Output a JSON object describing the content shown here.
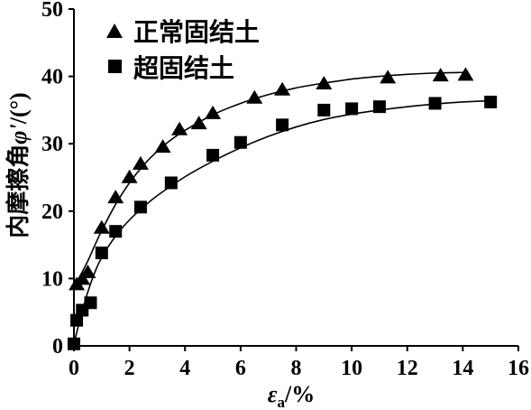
{
  "chart_data": {
    "type": "scatter",
    "xlim": [
      0,
      16
    ],
    "ylim": [
      0,
      50
    ],
    "xticks": [
      0,
      2,
      4,
      6,
      8,
      10,
      12,
      14,
      16
    ],
    "yticks": [
      0,
      10,
      20,
      30,
      40,
      50
    ],
    "grid": false,
    "legend": "top-left",
    "xlabel": {
      "var": "ε",
      "sub": "a",
      "unit": "/%"
    },
    "ylabel": {
      "text": "内摩擦角",
      "var": "φ'",
      "unit": "/(°)"
    },
    "series": [
      {
        "name": "正常固结土",
        "marker": "triangle",
        "color": "#000000",
        "points": [
          [
            0.1,
            9.2
          ],
          [
            0.3,
            10.0
          ],
          [
            0.5,
            11.0
          ],
          [
            1.0,
            17.6
          ],
          [
            1.5,
            22.1
          ],
          [
            2.0,
            25.1
          ],
          [
            2.4,
            27.1
          ],
          [
            3.2,
            29.6
          ],
          [
            3.8,
            32.2
          ],
          [
            4.5,
            33.1
          ],
          [
            5.0,
            34.6
          ],
          [
            6.5,
            36.9
          ],
          [
            7.5,
            38.1
          ],
          [
            9.0,
            39.0
          ],
          [
            11.3,
            39.9
          ],
          [
            13.2,
            40.2
          ],
          [
            14.1,
            40.3
          ]
        ],
        "fit": [
          [
            0,
            8.8
          ],
          [
            0.25,
            10.6
          ],
          [
            0.5,
            12.6
          ],
          [
            0.75,
            14.9
          ],
          [
            1.0,
            17.1
          ],
          [
            1.5,
            21.0
          ],
          [
            2.0,
            24.2
          ],
          [
            2.5,
            26.8
          ],
          [
            3.0,
            28.9
          ],
          [
            3.5,
            30.6
          ],
          [
            4.0,
            32.0
          ],
          [
            5.0,
            34.3
          ],
          [
            6.0,
            36.0
          ],
          [
            7.0,
            37.3
          ],
          [
            8.0,
            38.3
          ],
          [
            9.0,
            39.0
          ],
          [
            10.0,
            39.6
          ],
          [
            11.0,
            40.0
          ],
          [
            12.0,
            40.3
          ],
          [
            13.0,
            40.5
          ],
          [
            14.1,
            40.6
          ]
        ]
      },
      {
        "name": "超固结土",
        "marker": "square",
        "color": "#000000",
        "points": [
          [
            0.0,
            0.3
          ],
          [
            0.1,
            3.8
          ],
          [
            0.3,
            5.3
          ],
          [
            0.6,
            6.4
          ],
          [
            1.0,
            13.8
          ],
          [
            1.5,
            17.0
          ],
          [
            2.4,
            20.6
          ],
          [
            3.5,
            24.2
          ],
          [
            5.0,
            28.3
          ],
          [
            6.0,
            30.2
          ],
          [
            7.5,
            32.8
          ],
          [
            9.0,
            35.0
          ],
          [
            10.0,
            35.2
          ],
          [
            11.0,
            35.5
          ],
          [
            13.0,
            36.0
          ],
          [
            15.0,
            36.2
          ]
        ],
        "fit": [
          [
            0,
            0.3
          ],
          [
            0.15,
            2.8
          ],
          [
            0.3,
            5.2
          ],
          [
            0.5,
            8.0
          ],
          [
            0.75,
            10.9
          ],
          [
            1.0,
            13.1
          ],
          [
            1.5,
            16.3
          ],
          [
            2.0,
            18.7
          ],
          [
            2.5,
            20.6
          ],
          [
            3.0,
            22.3
          ],
          [
            4.0,
            25.1
          ],
          [
            5.0,
            27.4
          ],
          [
            6.0,
            29.4
          ],
          [
            7.0,
            31.1
          ],
          [
            8.0,
            32.5
          ],
          [
            9.0,
            33.6
          ],
          [
            10.0,
            34.4
          ],
          [
            11.0,
            35.0
          ],
          [
            12.0,
            35.5
          ],
          [
            13.0,
            35.9
          ],
          [
            14.0,
            36.2
          ],
          [
            15.0,
            36.4
          ]
        ]
      }
    ]
  }
}
